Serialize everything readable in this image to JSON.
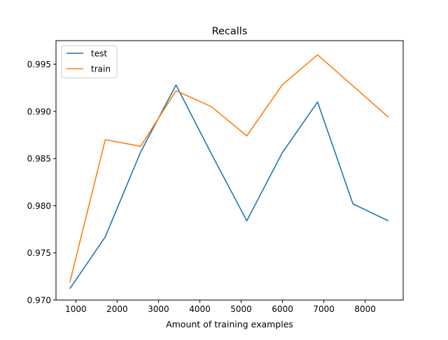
{
  "chart_data": {
    "type": "line",
    "title": "Recalls",
    "xlabel": "Amount of training examples",
    "ylabel": "",
    "xlim": [
      520,
      8920
    ],
    "ylim": [
      0.97,
      0.9975
    ],
    "xticks": [
      1000,
      2000,
      3000,
      4000,
      5000,
      6000,
      7000,
      8000
    ],
    "yticks": [
      0.97,
      0.975,
      0.98,
      0.985,
      0.99,
      0.995
    ],
    "ytick_labels": [
      "0.970",
      "0.975",
      "0.980",
      "0.985",
      "0.990",
      "0.995"
    ],
    "grid": false,
    "legend": "top-left",
    "x": [
      856,
      1712,
      2568,
      3424,
      4280,
      5136,
      5992,
      6848,
      7704,
      8560
    ],
    "series": [
      {
        "name": "test",
        "color": "#1f77b4",
        "values": [
          0.9712,
          0.9767,
          0.9857,
          0.9928,
          0.9855,
          0.9784,
          0.9856,
          0.991,
          0.9802,
          0.9784
        ]
      },
      {
        "name": "train",
        "color": "#ff7f0e",
        "values": [
          0.9719,
          0.987,
          0.9863,
          0.9922,
          0.9905,
          0.9874,
          0.9928,
          0.996,
          0.9927,
          0.9894
        ]
      }
    ]
  }
}
